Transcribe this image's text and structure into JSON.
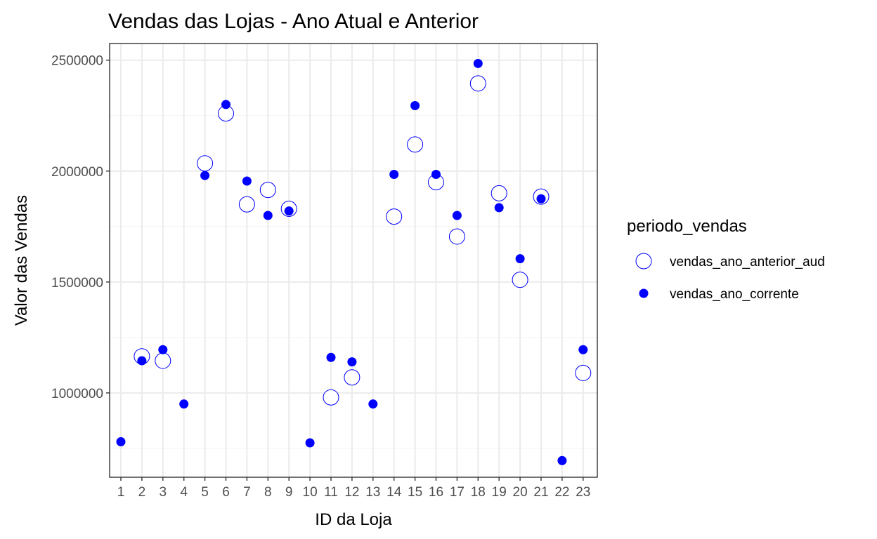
{
  "chart_data": {
    "type": "scatter",
    "title": "Vendas das Lojas - Ano Atual e Anterior",
    "xlabel": "ID da Loja",
    "ylabel": "Valor das Vendas",
    "x_categories": [
      "1",
      "2",
      "3",
      "4",
      "5",
      "6",
      "7",
      "8",
      "9",
      "10",
      "11",
      "12",
      "13",
      "14",
      "15",
      "16",
      "17",
      "18",
      "19",
      "20",
      "21",
      "22",
      "23"
    ],
    "y_ticks": [
      1000000,
      1500000,
      2000000,
      2500000
    ],
    "y_tick_labels": [
      "1000000",
      "1500000",
      "2000000",
      "2500000"
    ],
    "ylim": [
      620000,
      2575000
    ],
    "grid": true,
    "legend": {
      "title": "periodo_vendas",
      "position": "right",
      "entries": [
        "vendas_ano_anterior_aud",
        "vendas_ano_corrente"
      ]
    },
    "series": [
      {
        "name": "vendas_ano_anterior_aud",
        "marker": "open-circle",
        "color": "#0000ff",
        "points": [
          {
            "x": 2,
            "y": 1165000
          },
          {
            "x": 3,
            "y": 1145000
          },
          {
            "x": 5,
            "y": 2035000
          },
          {
            "x": 6,
            "y": 2260000
          },
          {
            "x": 7,
            "y": 1850000
          },
          {
            "x": 8,
            "y": 1915000
          },
          {
            "x": 9,
            "y": 1830000
          },
          {
            "x": 11,
            "y": 980000
          },
          {
            "x": 12,
            "y": 1070000
          },
          {
            "x": 14,
            "y": 1795000
          },
          {
            "x": 15,
            "y": 2120000
          },
          {
            "x": 16,
            "y": 1950000
          },
          {
            "x": 17,
            "y": 1705000
          },
          {
            "x": 18,
            "y": 2395000
          },
          {
            "x": 19,
            "y": 1900000
          },
          {
            "x": 20,
            "y": 1510000
          },
          {
            "x": 21,
            "y": 1885000
          },
          {
            "x": 23,
            "y": 1090000
          }
        ]
      },
      {
        "name": "vendas_ano_corrente",
        "marker": "filled-circle",
        "color": "#0000ff",
        "points": [
          {
            "x": 1,
            "y": 780000
          },
          {
            "x": 2,
            "y": 1145000
          },
          {
            "x": 3,
            "y": 1195000
          },
          {
            "x": 4,
            "y": 950000
          },
          {
            "x": 5,
            "y": 1980000
          },
          {
            "x": 6,
            "y": 2300000
          },
          {
            "x": 7,
            "y": 1955000
          },
          {
            "x": 8,
            "y": 1800000
          },
          {
            "x": 9,
            "y": 1820000
          },
          {
            "x": 10,
            "y": 775000
          },
          {
            "x": 11,
            "y": 1160000
          },
          {
            "x": 12,
            "y": 1140000
          },
          {
            "x": 13,
            "y": 950000
          },
          {
            "x": 14,
            "y": 1985000
          },
          {
            "x": 15,
            "y": 2295000
          },
          {
            "x": 16,
            "y": 1985000
          },
          {
            "x": 17,
            "y": 1800000
          },
          {
            "x": 18,
            "y": 2485000
          },
          {
            "x": 19,
            "y": 1835000
          },
          {
            "x": 20,
            "y": 1605000
          },
          {
            "x": 21,
            "y": 1875000
          },
          {
            "x": 22,
            "y": 695000
          },
          {
            "x": 23,
            "y": 1195000
          }
        ]
      }
    ]
  }
}
